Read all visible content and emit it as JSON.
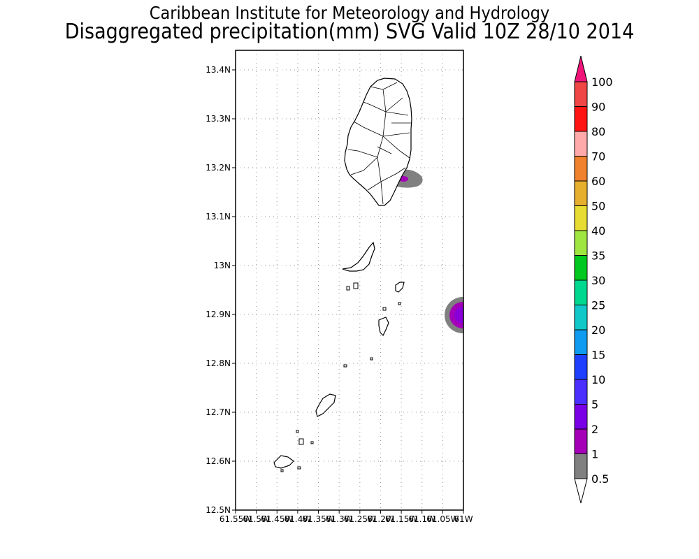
{
  "header": {
    "line1": "Caribbean Institute for Meteorology and Hydrology",
    "line2": "Disaggregated precipitation(mm) SVG Valid 10Z 28/10 2014"
  },
  "map": {
    "lat_range": [
      12.5,
      13.44
    ],
    "lon_range": [
      -61.55,
      -61.0
    ],
    "lat_ticks": [
      "12.5N",
      "12.6N",
      "12.7N",
      "12.8N",
      "12.9N",
      "13N",
      "13.1N",
      "13.2N",
      "13.3N",
      "13.4N"
    ],
    "lon_ticks": [
      "61.55W",
      "61.5W",
      "61.45W",
      "61.4W",
      "61.35W",
      "61.3W",
      "61.25W",
      "61.2W",
      "61.15W",
      "61.1W",
      "61.05W",
      "61W"
    ],
    "gridlines": true
  },
  "colorbar": {
    "labels": [
      "0.5",
      "1",
      "2",
      "5",
      "10",
      "15",
      "20",
      "25",
      "30",
      "35",
      "40",
      "50",
      "60",
      "70",
      "80",
      "90",
      "100"
    ],
    "colors": [
      "#808080",
      "#a300b8",
      "#7a00e6",
      "#4a2fff",
      "#1f3fff",
      "#0f9bf0",
      "#10c8c8",
      "#00d890",
      "#00c81e",
      "#a0e640",
      "#e6dc32",
      "#e6af2d",
      "#f0822d",
      "#ffaaaa",
      "#ff1414",
      "#f04646"
    ],
    "top_color": "#f0147a",
    "bottom_color": "#ffffff"
  },
  "precip_features": [
    {
      "name": "east-of-saint-vincent",
      "lon": -61.14,
      "lat": 13.177,
      "class": "0.5"
    },
    {
      "name": "east-edge-grenadines",
      "lon": -61.0,
      "lat": 12.9,
      "class": "2"
    }
  ]
}
